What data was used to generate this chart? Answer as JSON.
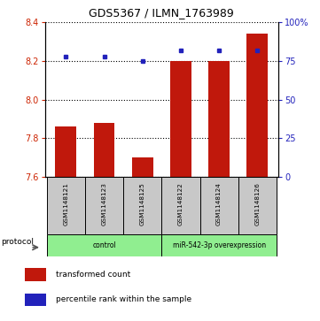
{
  "title": "GDS5367 / ILMN_1763989",
  "samples": [
    "GSM1148121",
    "GSM1148123",
    "GSM1148125",
    "GSM1148122",
    "GSM1148124",
    "GSM1148126"
  ],
  "transformed_counts": [
    7.86,
    7.88,
    7.7,
    8.2,
    8.2,
    8.34
  ],
  "percentile_ranks": [
    78,
    78,
    75,
    82,
    82,
    82
  ],
  "ylim_left": [
    7.6,
    8.4
  ],
  "ylim_right": [
    0,
    100
  ],
  "yticks_left": [
    7.6,
    7.8,
    8.0,
    8.2,
    8.4
  ],
  "yticks_right": [
    0,
    25,
    50,
    75,
    100
  ],
  "bar_color": "#C0180C",
  "dot_color": "#2222BB",
  "group_labels": [
    "control",
    "miR-542-3p overexpression"
  ],
  "group_ranges": [
    [
      0,
      3
    ],
    [
      3,
      6
    ]
  ],
  "group_color": "#90EE90",
  "protocol_label": "protocol",
  "legend_bar": "transformed count",
  "legend_dot": "percentile rank within the sample",
  "tick_color_left": "#CC2200",
  "tick_color_right": "#2222BB",
  "sample_box_color": "#C8C8C8",
  "bar_width": 0.55
}
